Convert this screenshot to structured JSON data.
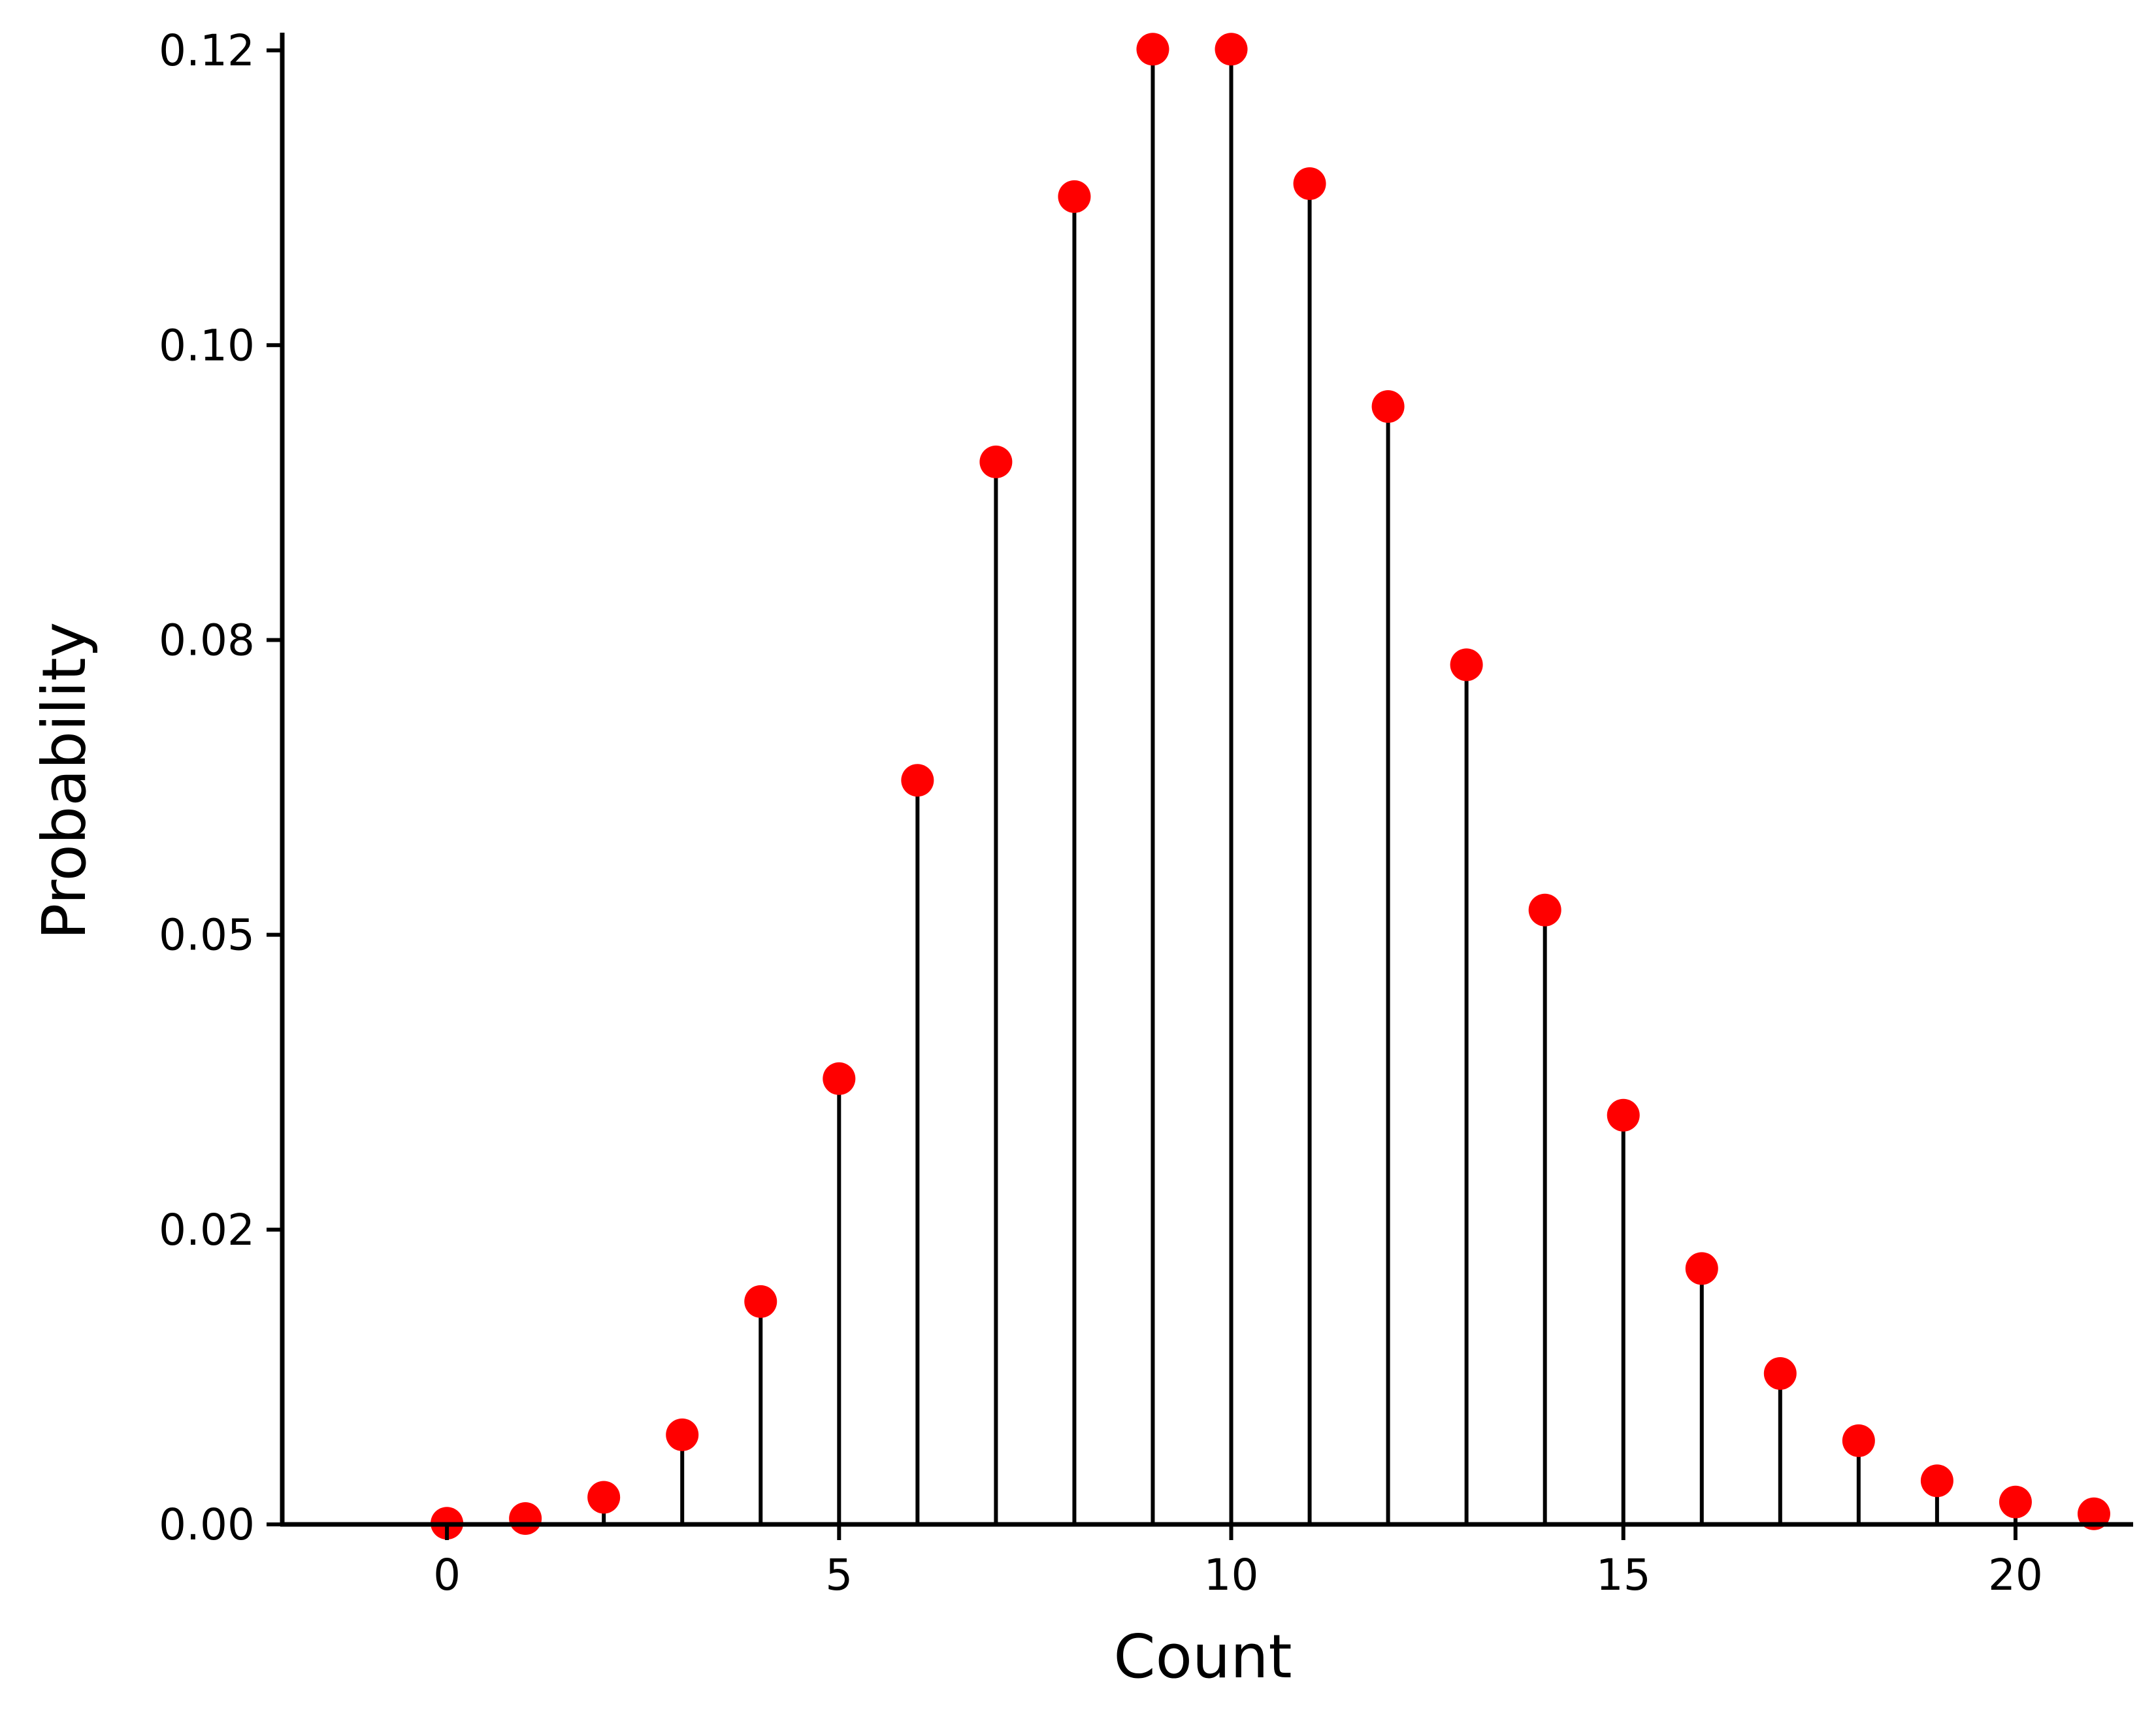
{
  "chart_data": {
    "type": "stem",
    "title": "",
    "xlabel": "Count",
    "ylabel": "Probability",
    "xlim": [
      -2.1,
      21.5
    ],
    "ylim": [
      0,
      0.1265
    ],
    "grid": false,
    "legend": "none",
    "x_ticks": [
      0,
      5,
      10,
      15,
      20
    ],
    "y_ticks": [
      0.0,
      0.025,
      0.05,
      0.075,
      0.1,
      0.125
    ],
    "y_tick_labels": [
      "0.00",
      "0.02",
      "0.05",
      "0.08",
      "0.10",
      "0.12"
    ],
    "x_tick_labels": [
      "0",
      "5",
      "10",
      "15",
      "20"
    ],
    "x": [
      0,
      1,
      2,
      3,
      4,
      5,
      6,
      7,
      8,
      9,
      10,
      11,
      12,
      13,
      14,
      15,
      16,
      17,
      18,
      19,
      20,
      21
    ],
    "y": [
      0.0001,
      0.0005,
      0.0023,
      0.0076,
      0.0189,
      0.0378,
      0.0631,
      0.0901,
      0.1126,
      0.1251,
      0.1251,
      0.1137,
      0.0948,
      0.0729,
      0.0521,
      0.0347,
      0.0217,
      0.0128,
      0.0071,
      0.0037,
      0.0019,
      0.0009
    ],
    "colors": {
      "marker": "#ff0000",
      "stem": "#000000",
      "axis": "#000000"
    }
  }
}
